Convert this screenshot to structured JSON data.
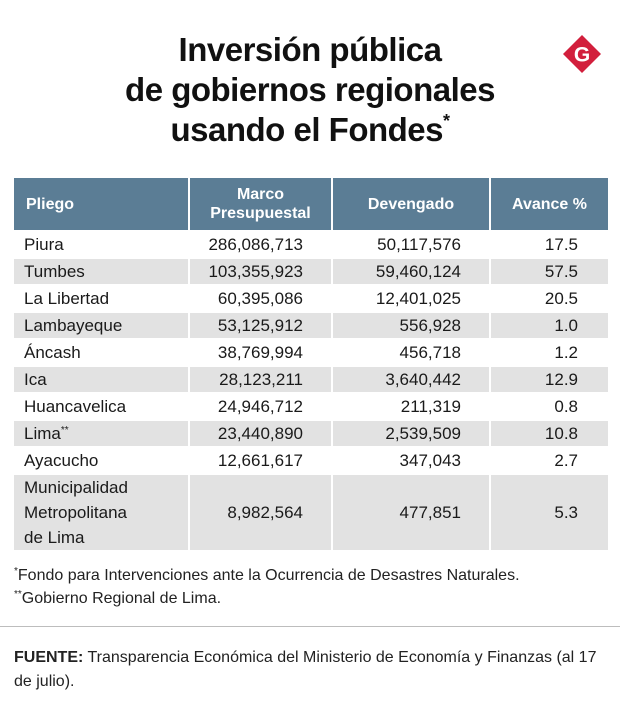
{
  "title": {
    "line1": "Inversión pública",
    "line2": "de gobiernos regionales",
    "line3": "usando el Fondes",
    "mark": "*"
  },
  "logo": {
    "letter": "G",
    "color": "#d21f3c"
  },
  "table": {
    "headers": [
      "Pliego",
      "Marco Presupuestal",
      "Devengado",
      "Avance %"
    ],
    "rows": [
      {
        "pliego": "Piura",
        "marco": "286,086,713",
        "devengado": "50,117,576",
        "avance": "17.5"
      },
      {
        "pliego": "Tumbes",
        "marco": "103,355,923",
        "devengado": "59,460,124",
        "avance": "57.5"
      },
      {
        "pliego": "La Libertad",
        "marco": "60,395,086",
        "devengado": "12,401,025",
        "avance": "20.5"
      },
      {
        "pliego": "Lambayeque",
        "marco": "53,125,912",
        "devengado": "556,928",
        "avance": "1.0"
      },
      {
        "pliego": "Áncash",
        "marco": "38,769,994",
        "devengado": "456,718",
        "avance": "1.2"
      },
      {
        "pliego": "Ica",
        "marco": "28,123,211",
        "devengado": "3,640,442",
        "avance": "12.9"
      },
      {
        "pliego": "Huancavelica",
        "marco": "24,946,712",
        "devengado": "211,319",
        "avance": "0.8"
      },
      {
        "pliego": "Lima",
        "mark": "**",
        "marco": "23,440,890",
        "devengado": "2,539,509",
        "avance": "10.8"
      },
      {
        "pliego": "Ayacucho",
        "marco": "12,661,617",
        "devengado": "347,043",
        "avance": "2.7"
      },
      {
        "pliego_lines": [
          "Municipalidad",
          "Metropolitana",
          "de Lima"
        ],
        "marco": "8,982,564",
        "devengado": "477,851",
        "avance": "5.3"
      }
    ],
    "header_color": "#5b7d95",
    "stripe_color": "#e2e2e2"
  },
  "notes": [
    {
      "mark": "*",
      "text": "Fondo para Intervenciones ante la Ocurrencia de Desastres Naturales."
    },
    {
      "mark": "**",
      "text": "Gobierno Regional de Lima."
    }
  ],
  "source": {
    "label": "FUENTE:",
    "text": " Transparencia Económica del Ministerio de Economía y Finanzas (al 17 de julio)."
  }
}
